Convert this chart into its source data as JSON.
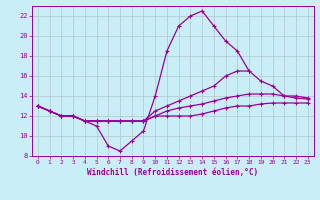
{
  "xlabel": "Windchill (Refroidissement éolien,°C)",
  "bg_color": "#caeef7",
  "grid_color": "#b0c8cc",
  "line_color": "#990099",
  "ylim": [
    8,
    23
  ],
  "xlim": [
    -0.5,
    23.5
  ],
  "yticks": [
    8,
    10,
    12,
    14,
    16,
    18,
    20,
    22
  ],
  "xticks": [
    0,
    1,
    2,
    3,
    4,
    5,
    6,
    7,
    8,
    9,
    10,
    11,
    12,
    13,
    14,
    15,
    16,
    17,
    18,
    19,
    20,
    21,
    22,
    23
  ],
  "x_all": [
    0,
    1,
    2,
    3,
    4,
    5,
    6,
    7,
    8,
    9,
    10,
    11,
    12,
    13,
    14,
    15,
    16,
    17,
    18,
    19,
    20,
    21,
    22,
    23
  ],
  "y_spike": [
    13.0,
    12.5,
    12.0,
    12.0,
    11.5,
    11.0,
    9.0,
    8.5,
    9.5,
    10.5,
    14.0,
    18.5,
    21.0,
    22.0,
    22.5,
    21.0,
    19.5,
    18.5,
    16.5,
    null,
    null,
    null,
    null,
    null
  ],
  "y_upper": [
    13.0,
    12.5,
    12.0,
    12.0,
    11.5,
    11.5,
    11.5,
    11.5,
    11.5,
    11.5,
    12.5,
    13.0,
    13.5,
    14.0,
    14.5,
    15.0,
    16.0,
    16.5,
    16.5,
    15.5,
    15.0,
    14.0,
    14.0,
    13.8
  ],
  "y_mid": [
    13.0,
    12.5,
    12.0,
    12.0,
    11.5,
    11.5,
    11.5,
    11.5,
    11.5,
    11.5,
    12.0,
    12.5,
    12.8,
    13.0,
    13.2,
    13.5,
    13.8,
    14.0,
    14.2,
    14.2,
    14.2,
    14.0,
    13.8,
    13.7
  ],
  "y_lower": [
    13.0,
    12.5,
    12.0,
    12.0,
    11.5,
    11.5,
    11.5,
    11.5,
    11.5,
    11.5,
    12.0,
    12.0,
    12.0,
    12.0,
    12.2,
    12.5,
    12.8,
    13.0,
    13.0,
    13.2,
    13.3,
    13.3,
    13.3,
    13.3
  ]
}
